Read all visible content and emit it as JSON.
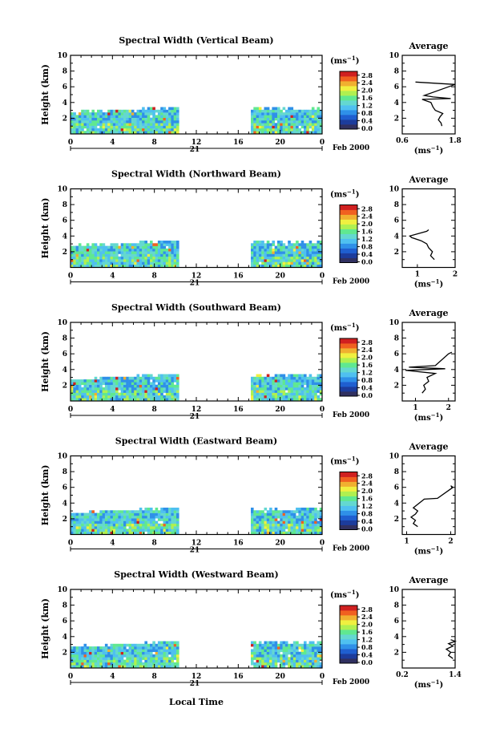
{
  "shared": {
    "xlabel": "Local Time",
    "ylabel": "Height (km)",
    "day_label": "21",
    "date_label": "Feb 2000",
    "avg_title": "Average",
    "unit_label_base": "(ms",
    "unit_label_exp": "−1",
    "unit_label_close": ")",
    "x_ticks": [
      "0",
      "4",
      "8",
      "12",
      "16",
      "20",
      "0"
    ],
    "y_ticks": [
      "2",
      "4",
      "6",
      "8",
      "10"
    ],
    "colorbar_ticks": [
      "0.0",
      "0.4",
      "0.8",
      "1.2",
      "1.6",
      "2.0",
      "2.4",
      "2.8"
    ],
    "colors": {
      "colormap": [
        "#303060",
        "#1c3c9c",
        "#1f5fd0",
        "#2f90e8",
        "#4fc0f0",
        "#64d8d0",
        "#60e890",
        "#b0f050",
        "#f0f040",
        "#f0b030",
        "#f06020",
        "#d02020"
      ],
      "line": "#000000"
    }
  },
  "chart_data": [
    {
      "type": "heatmap",
      "title": "Spectral Width (Vertical Beam)",
      "xlabel": "Local Time",
      "ylabel": "Height (km)",
      "xlim": [
        0,
        24
      ],
      "ylim": [
        0,
        10
      ],
      "data_segments": [
        {
          "x": [
            0,
            10.2
          ],
          "y_top": [
            2.6,
            3.3
          ]
        },
        {
          "x": [
            17.2,
            23.8
          ],
          "y_top": [
            3.1,
            3.1
          ]
        }
      ],
      "colorbar": {
        "label": "(ms−1)",
        "range": [
          0,
          2.8
        ]
      },
      "average": {
        "xlim": [
          0.6,
          1.8
        ],
        "x_ticks": [
          "0.6",
          "1.8"
        ],
        "ylim": [
          0,
          10
        ],
        "profile": [
          [
            1.5,
            1.0
          ],
          [
            1.48,
            1.4
          ],
          [
            1.42,
            1.8
          ],
          [
            1.46,
            2.2
          ],
          [
            1.52,
            2.6
          ],
          [
            1.35,
            3.0
          ],
          [
            1.3,
            3.4
          ],
          [
            1.25,
            4.0
          ],
          [
            1.05,
            4.4
          ],
          [
            1.7,
            4.5
          ],
          [
            1.3,
            4.7
          ],
          [
            1.1,
            4.9
          ],
          [
            1.8,
            6.3
          ],
          [
            0.9,
            6.6
          ]
        ]
      }
    },
    {
      "type": "heatmap",
      "title": "Spectral Width (Northward Beam)",
      "xlabel": "Local Time",
      "ylabel": "Height (km)",
      "xlim": [
        0,
        24
      ],
      "ylim": [
        0,
        10
      ],
      "data_segments": [
        {
          "x": [
            0,
            10.2
          ],
          "y_top": [
            2.6,
            3.3
          ]
        },
        {
          "x": [
            17.2,
            23.8
          ],
          "y_top": [
            3.1,
            3.1
          ]
        }
      ],
      "colorbar": {
        "label": "(ms−1)",
        "range": [
          0,
          2.8
        ]
      },
      "average": {
        "xlim": [
          0.6,
          2.0
        ],
        "x_ticks": [
          "1",
          "2"
        ],
        "ylim": [
          0,
          10
        ],
        "profile": [
          [
            1.45,
            1.0
          ],
          [
            1.35,
            1.5
          ],
          [
            1.4,
            2.0
          ],
          [
            1.3,
            2.5
          ],
          [
            1.25,
            3.0
          ],
          [
            1.1,
            3.4
          ],
          [
            0.85,
            3.8
          ],
          [
            0.8,
            4.0
          ],
          [
            1.25,
            4.6
          ],
          [
            1.3,
            4.8
          ]
        ]
      }
    },
    {
      "type": "heatmap",
      "title": "Spectral Width (Southward Beam)",
      "xlabel": "Local Time",
      "ylabel": "Height (km)",
      "xlim": [
        0,
        24
      ],
      "ylim": [
        0,
        10
      ],
      "data_segments": [
        {
          "x": [
            0,
            10.2
          ],
          "y_top": [
            2.6,
            3.3
          ]
        },
        {
          "x": [
            17.2,
            23.8
          ],
          "y_top": [
            3.1,
            3.1
          ]
        }
      ],
      "colorbar": {
        "label": "(ms−1)",
        "range": [
          0,
          2.8
        ]
      },
      "average": {
        "xlim": [
          0.6,
          2.2
        ],
        "x_ticks": [
          "1",
          "2"
        ],
        "ylim": [
          0,
          10
        ],
        "profile": [
          [
            1.2,
            1.0
          ],
          [
            1.3,
            1.5
          ],
          [
            1.25,
            2.0
          ],
          [
            1.4,
            2.5
          ],
          [
            1.35,
            3.0
          ],
          [
            1.6,
            3.5
          ],
          [
            0.7,
            3.9
          ],
          [
            1.9,
            4.1
          ],
          [
            0.8,
            4.3
          ],
          [
            1.6,
            4.5
          ],
          [
            2.0,
            6.0
          ],
          [
            2.1,
            6.2
          ]
        ]
      }
    },
    {
      "type": "heatmap",
      "title": "Spectral Width (Eastward Beam)",
      "xlabel": "Local Time",
      "ylabel": "Height (km)",
      "xlim": [
        0,
        24
      ],
      "ylim": [
        0,
        10
      ],
      "data_segments": [
        {
          "x": [
            0,
            10.2
          ],
          "y_top": [
            2.6,
            3.3
          ]
        },
        {
          "x": [
            17.2,
            23.8
          ],
          "y_top": [
            3.1,
            3.1
          ]
        }
      ],
      "colorbar": {
        "label": "(ms−1)",
        "range": [
          0,
          2.8
        ]
      },
      "average": {
        "xlim": [
          0.9,
          2.1
        ],
        "x_ticks": [
          "1",
          "2"
        ],
        "ylim": [
          0,
          10
        ],
        "profile": [
          [
            1.25,
            1.0
          ],
          [
            1.15,
            1.4
          ],
          [
            1.2,
            1.8
          ],
          [
            1.1,
            2.2
          ],
          [
            1.2,
            2.6
          ],
          [
            1.25,
            3.0
          ],
          [
            1.15,
            3.4
          ],
          [
            1.4,
            4.5
          ],
          [
            1.7,
            4.6
          ],
          [
            2.05,
            6.0
          ],
          [
            2.0,
            6.2
          ]
        ]
      }
    },
    {
      "type": "heatmap",
      "title": "Spectral Width (Westward Beam)",
      "xlabel": "Local Time",
      "ylabel": "Height (km)",
      "xlim": [
        0,
        24
      ],
      "ylim": [
        0,
        10
      ],
      "data_segments": [
        {
          "x": [
            0,
            10.2
          ],
          "y_top": [
            2.6,
            3.3
          ]
        },
        {
          "x": [
            17.2,
            23.8
          ],
          "y_top": [
            3.1,
            3.1
          ]
        }
      ],
      "colorbar": {
        "label": "(ms−1)",
        "range": [
          0,
          2.8
        ]
      },
      "average": {
        "xlim": [
          0.2,
          1.4
        ],
        "x_ticks": [
          "0.2",
          "1.4"
        ],
        "ylim": [
          0,
          10
        ],
        "profile": [
          [
            1.35,
            1.2
          ],
          [
            1.25,
            1.6
          ],
          [
            1.3,
            2.0
          ],
          [
            1.2,
            2.4
          ],
          [
            1.35,
            2.8
          ],
          [
            1.25,
            3.1
          ],
          [
            1.4,
            3.4
          ],
          [
            1.3,
            3.6
          ]
        ]
      }
    }
  ]
}
